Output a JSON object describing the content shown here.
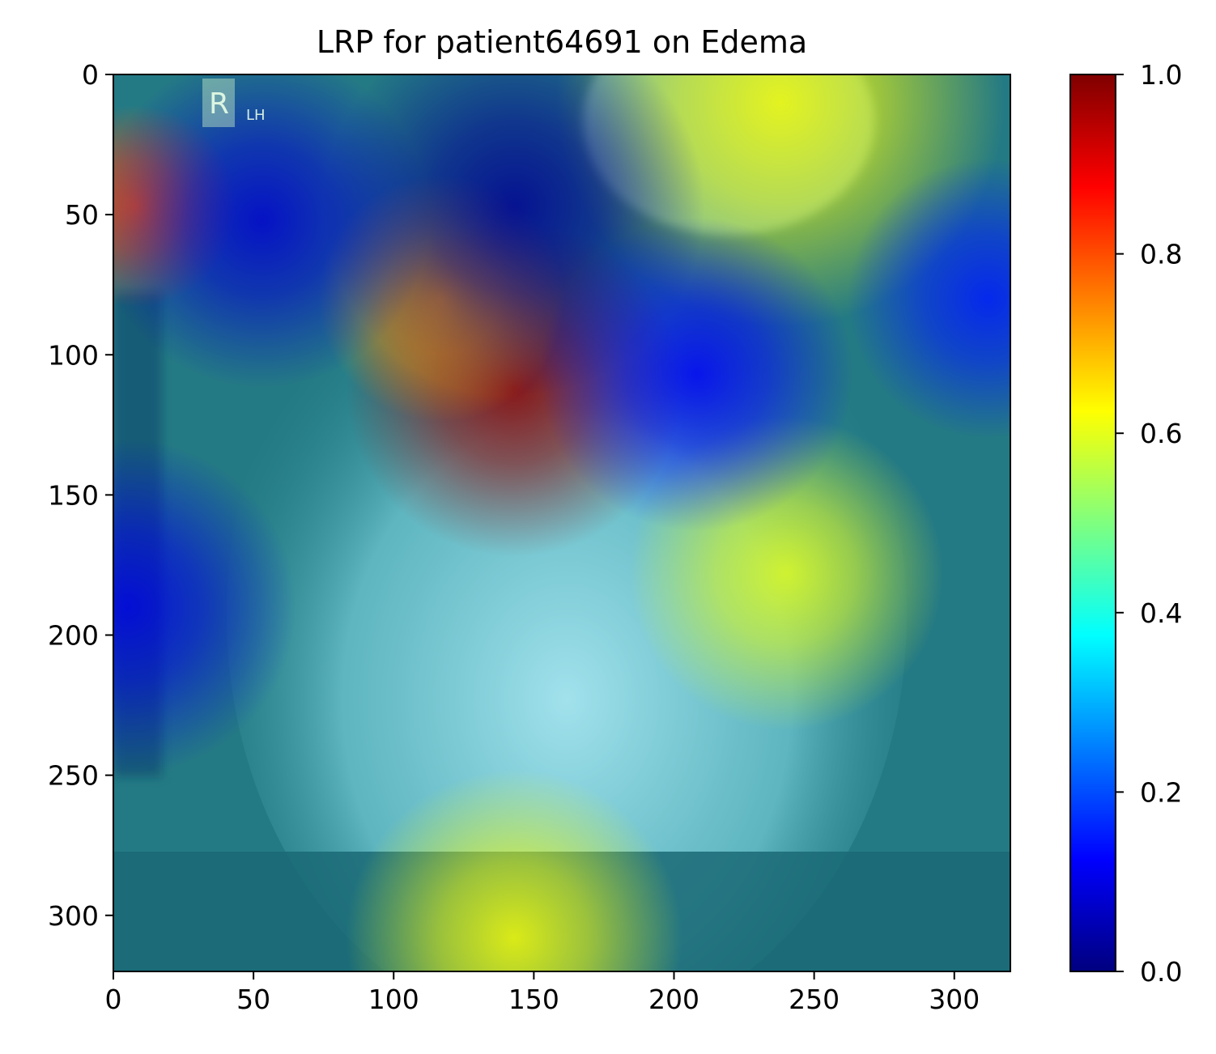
{
  "chart_data": {
    "type": "heatmap",
    "title": "LRP for patient64691 on Edema",
    "xlabel": "",
    "ylabel": "",
    "image_width": 320,
    "image_height": 320,
    "xlim": [
      0,
      320
    ],
    "ylim": [
      320,
      0
    ],
    "x_ticks": [
      0,
      50,
      100,
      150,
      200,
      250,
      300
    ],
    "y_ticks": [
      0,
      50,
      100,
      150,
      200,
      250,
      300
    ],
    "colormap": "jet",
    "colorbar": {
      "range": [
        0.0,
        1.0
      ],
      "ticks": [
        0.0,
        0.2,
        0.4,
        0.6,
        0.8,
        1.0
      ],
      "tick_labels": [
        "0.0",
        "0.2",
        "0.4",
        "0.6",
        "0.8",
        "1.0"
      ],
      "colors": [
        "#00007f",
        "#0000ff",
        "#007fff",
        "#00ffff",
        "#7fff7f",
        "#ffff00",
        "#ff7f00",
        "#ff0000",
        "#7f0000"
      ]
    },
    "background_value": 0.35,
    "hotspots": [
      {
        "x": 143,
        "y": 112,
        "value": 0.98,
        "radius": 30
      },
      {
        "x": 117,
        "y": 80,
        "value": 0.72,
        "radius": 22
      },
      {
        "x": 238,
        "y": 10,
        "value": 0.62,
        "radius": 40
      },
      {
        "x": 240,
        "y": 178,
        "value": 0.6,
        "radius": 28
      },
      {
        "x": 143,
        "y": 308,
        "value": 0.62,
        "radius": 30
      },
      {
        "x": 8,
        "y": 47,
        "value": 0.8,
        "radius": 18
      },
      {
        "x": 143,
        "y": 47,
        "value": 0.02,
        "radius": 34
      },
      {
        "x": 53,
        "y": 52,
        "value": 0.08,
        "radius": 30
      },
      {
        "x": 208,
        "y": 107,
        "value": 0.12,
        "radius": 28
      },
      {
        "x": 312,
        "y": 80,
        "value": 0.15,
        "radius": 25
      },
      {
        "x": 5,
        "y": 190,
        "value": 0.1,
        "radius": 30
      }
    ],
    "image_overlay_text": [
      "R",
      "LH"
    ]
  }
}
